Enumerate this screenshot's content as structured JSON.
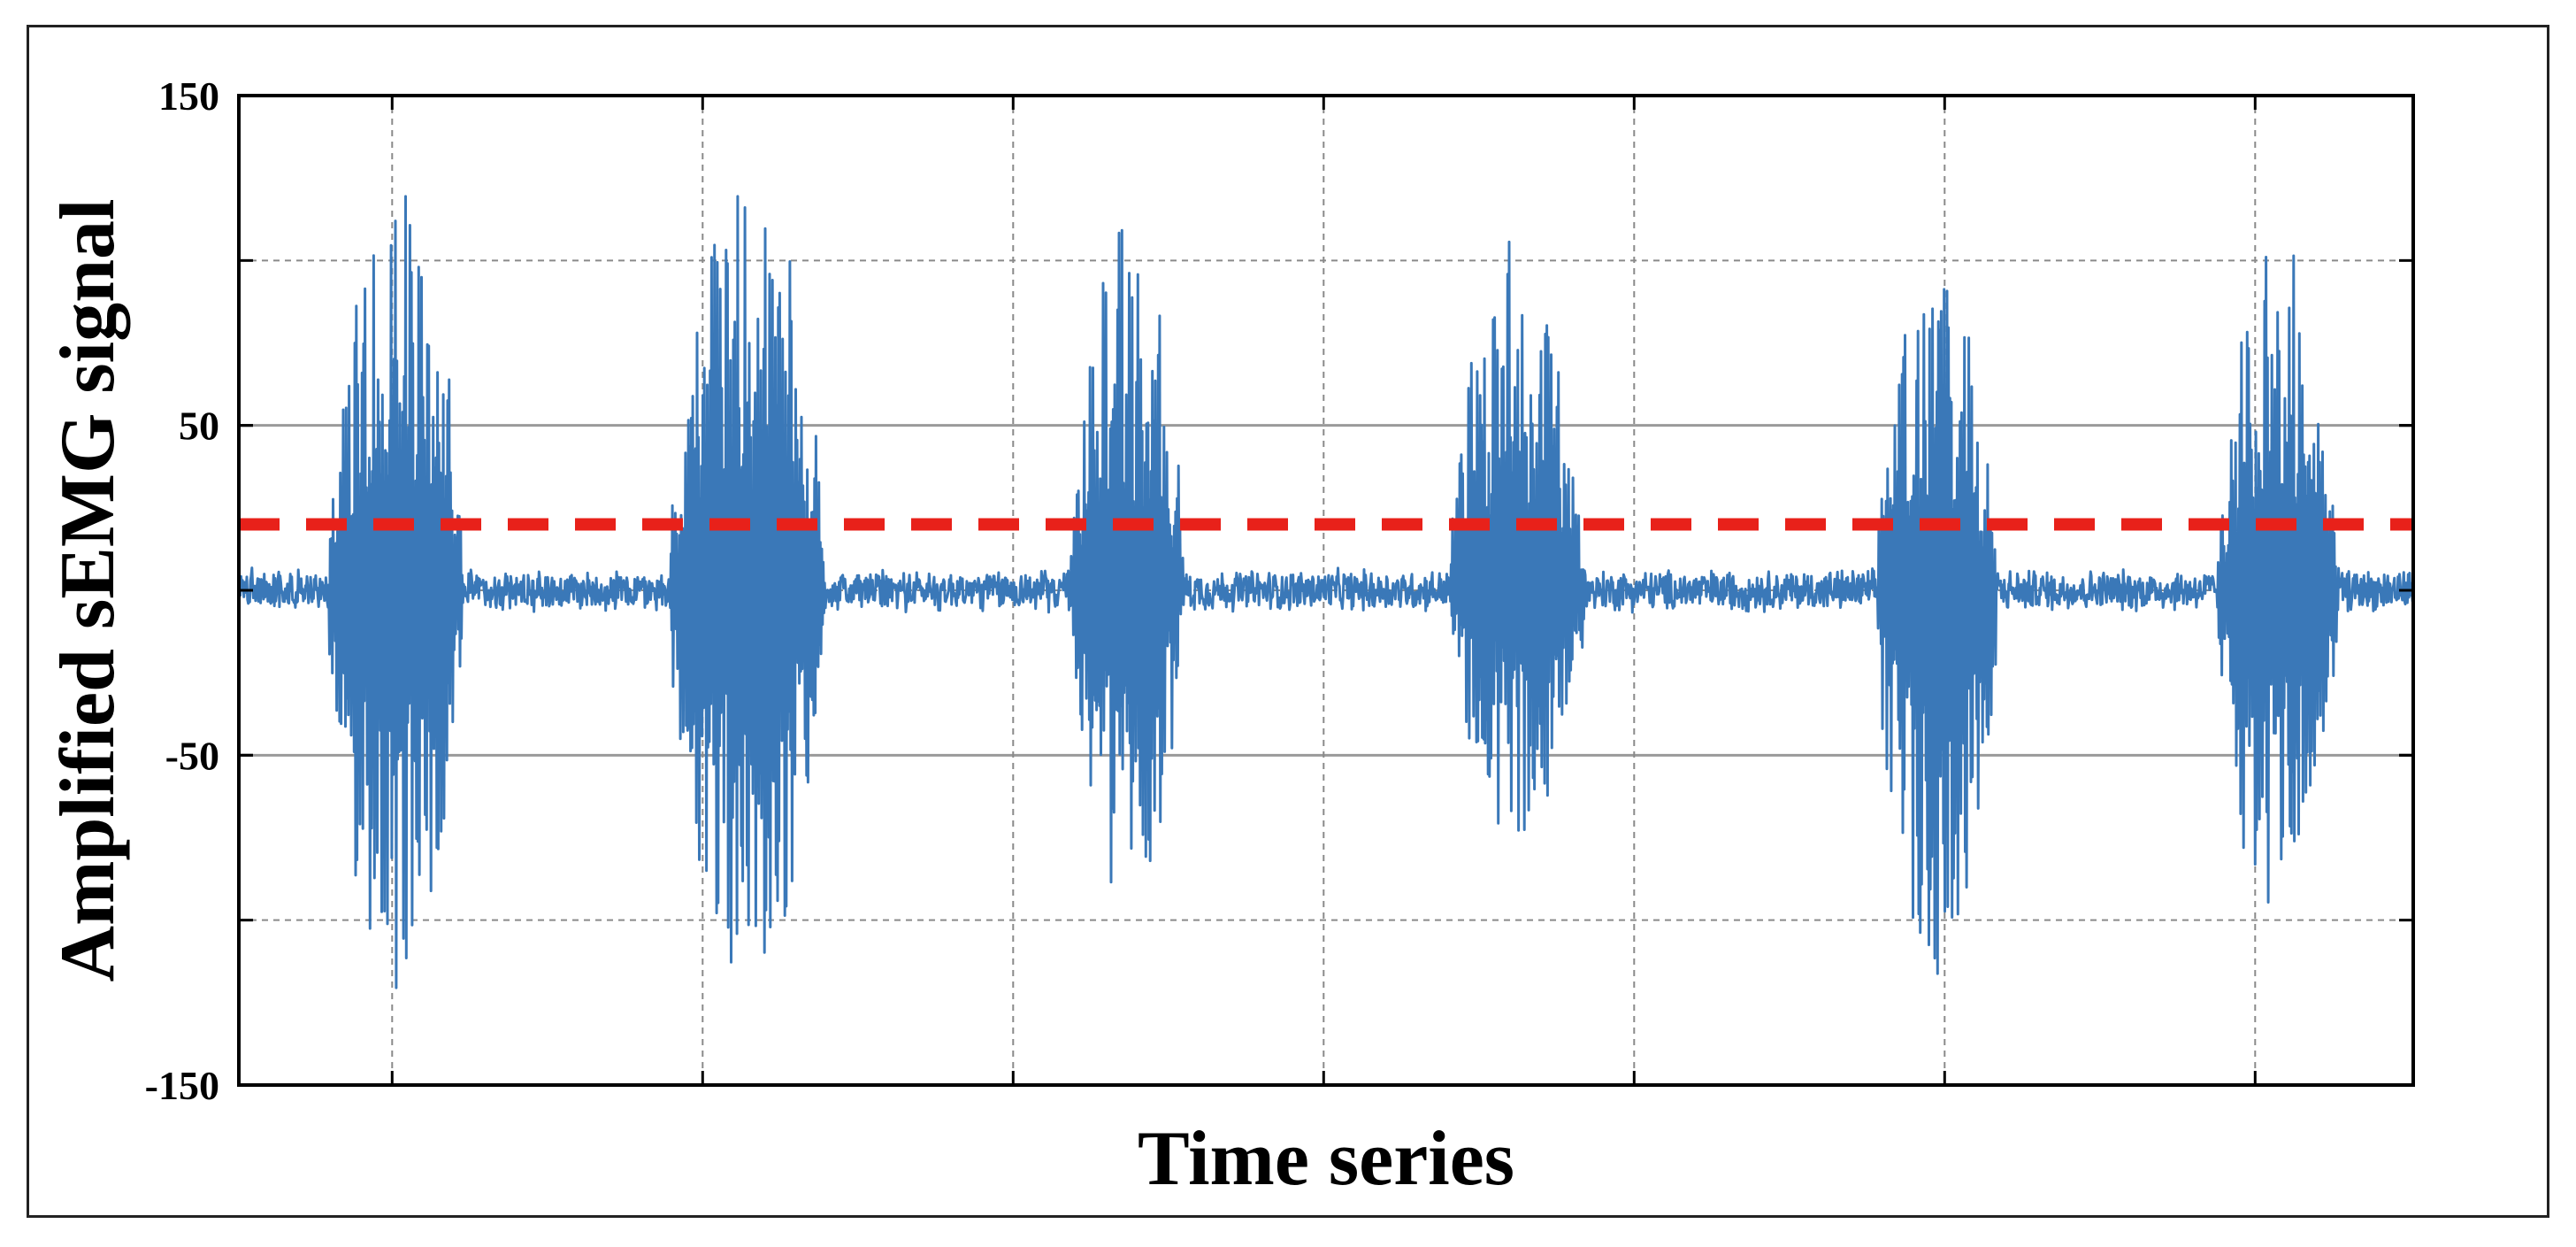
{
  "chart_data": {
    "type": "line",
    "title": "",
    "xlabel": "Time series",
    "ylabel": "Amplified sEMG signal",
    "ylim": [
      -150,
      150
    ],
    "y_ticks": [
      -150,
      -50,
      50,
      150
    ],
    "y_tick_labels": [
      "-150",
      "-50",
      "50",
      "150"
    ],
    "y_grid_lines": [
      -100,
      -50,
      0,
      50,
      100
    ],
    "x_tick_labels_shown": false,
    "grid": true,
    "legend": "none",
    "series": [
      {
        "kind": "signal",
        "color": "#3a78b8",
        "samples": 3000,
        "baseline_noise_amplitude": 5,
        "bursts": [
          {
            "center": 0.072,
            "width": 0.062,
            "peak_positive": 120,
            "peak_negative": -125
          },
          {
            "center": 0.234,
            "width": 0.072,
            "peak_positive": 127,
            "peak_negative": -120
          },
          {
            "center": 0.409,
            "width": 0.053,
            "peak_positive": 108,
            "peak_negative": -93
          },
          {
            "center": 0.588,
            "width": 0.062,
            "peak_positive": 104,
            "peak_negative": -75
          },
          {
            "center": 0.781,
            "width": 0.056,
            "peak_positive": 94,
            "peak_negative": -122
          },
          {
            "center": 0.938,
            "width": 0.056,
            "peak_positive": 104,
            "peak_negative": -98
          }
        ]
      },
      {
        "kind": "threshold",
        "y": 20,
        "color": "#e8211a",
        "style": "dashed"
      }
    ]
  }
}
